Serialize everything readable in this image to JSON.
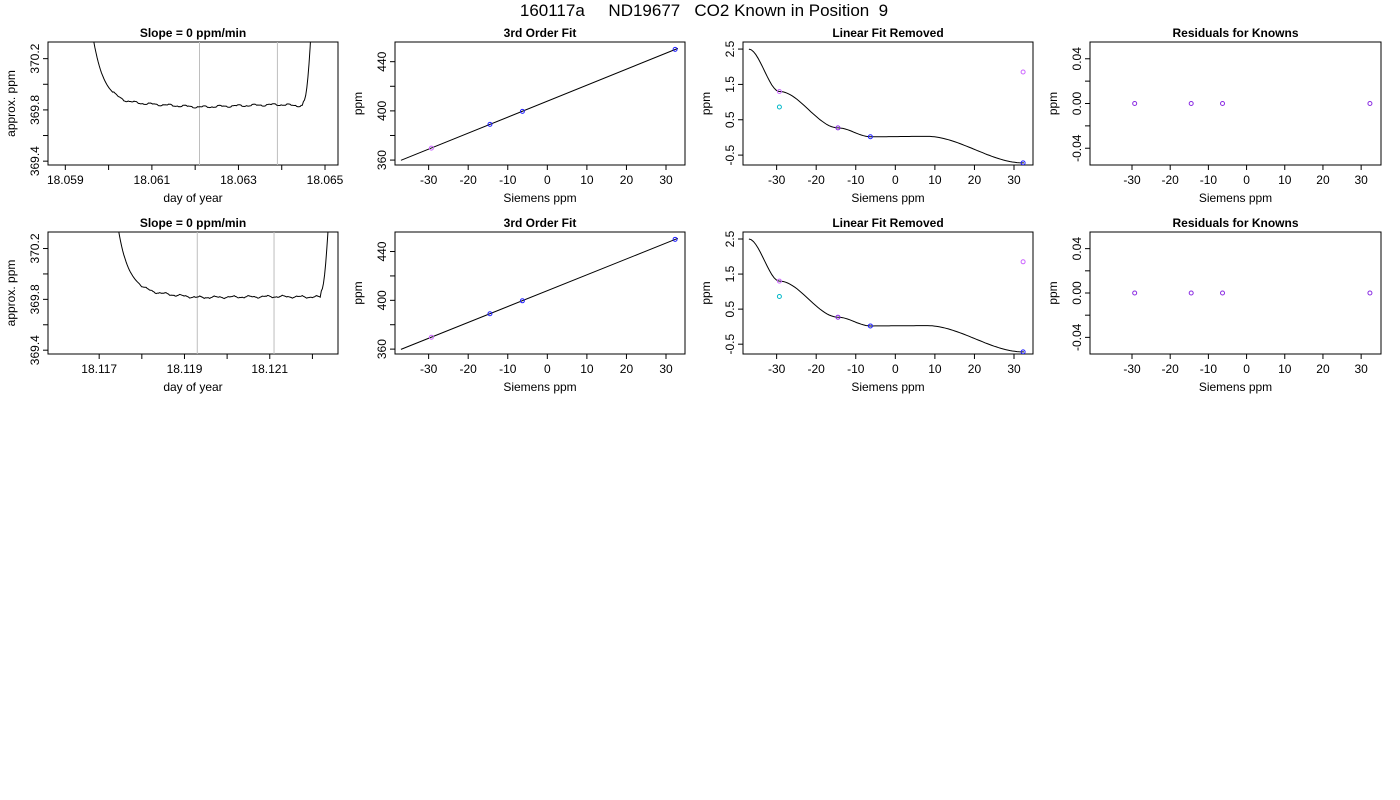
{
  "title": "160117a     ND19677   CO2 Known in Position  9",
  "colors": {
    "axis": "#000000",
    "trace": "#000000",
    "vline": "#bebebe",
    "fit_line": "#000000",
    "blue": "#1f1fff",
    "purple": "#8a2be2",
    "violet": "#cc66ff",
    "cyan": "#00b8c8",
    "red": "#ff0000",
    "orange": "#ff8c00"
  },
  "chart_data": [
    {
      "id": "r1-trace",
      "type": "line",
      "title": "Slope =  0  ppm/min",
      "xlabel": "day of year",
      "ylabel": "approx. ppm",
      "xlim": [
        18.0586,
        18.0653
      ],
      "ylim": [
        369.37,
        370.33
      ],
      "xticks": [
        18.059,
        18.06,
        18.061,
        18.062,
        18.063,
        18.064,
        18.065
      ],
      "xticklabels": [
        "18.059",
        "",
        "18.061",
        "",
        "18.063",
        "",
        "18.065"
      ],
      "yticks": [
        369.4,
        369.6,
        369.8,
        370.0,
        370.2
      ],
      "yticklabels": [
        "369.4",
        "",
        "369.8",
        "",
        "370.2"
      ],
      "vlines": [
        18.0621,
        18.0639
      ],
      "base": 369.855,
      "plateau_start": 18.0601,
      "plateau_end": 18.0645,
      "rise_start": 18.0603,
      "drop_end": 18.0598,
      "segments": [
        [
          18.0601,
          18.0621,
          369.862,
          369.822
        ],
        [
          18.0621,
          18.0639,
          369.822,
          369.842
        ],
        [
          18.0639,
          18.0645,
          369.842,
          369.832
        ]
      ],
      "grid": false
    },
    {
      "id": "r1-fit",
      "type": "scatter",
      "title": "3rd Order Fit",
      "xlabel": "Siemens ppm",
      "ylabel": "ppm",
      "xlim": [
        -38.5,
        34.8
      ],
      "ylim": [
        356,
        456
      ],
      "xticks": [
        -30,
        -20,
        -10,
        0,
        10,
        20,
        30
      ],
      "xticklabels": [
        "-30",
        "-20",
        "-10",
        "0",
        "10",
        "20",
        "30"
      ],
      "yticks": [
        360,
        380,
        400,
        420,
        440
      ],
      "yticklabels": [
        "360",
        "",
        "400",
        "",
        "440"
      ],
      "line": {
        "x0": -37,
        "x1": 33,
        "slope": 1.3,
        "intercept": 407.9
      },
      "points": [
        {
          "x": -29.3,
          "y": 369.7,
          "color": "#cc66ff"
        },
        {
          "x": -14.5,
          "y": 389.0,
          "color": "#1f1fff"
        },
        {
          "x": -6.3,
          "y": 399.6,
          "color": "#1f1fff"
        },
        {
          "x": 32.3,
          "y": 450.0,
          "color": "#1f1fff"
        }
      ],
      "grid": false
    },
    {
      "id": "r1-linear",
      "type": "scatter",
      "title": "Linear Fit Removed",
      "xlabel": "Siemens ppm",
      "ylabel": "ppm",
      "xlim": [
        -38.5,
        34.8
      ],
      "ylim": [
        -0.78,
        2.7
      ],
      "xticks": [
        -30,
        -20,
        -10,
        0,
        10,
        20,
        30
      ],
      "xticklabels": [
        "-30",
        "-20",
        "-10",
        "0",
        "10",
        "20",
        "30"
      ],
      "yticks": [
        -0.5,
        0.5,
        1.5,
        2.5
      ],
      "yticklabels": [
        "-0.5",
        "0.5",
        "1.5",
        "2.5"
      ],
      "curve": {
        "x0": -37,
        "x1": 32.5,
        "anchors": [
          [
            -37,
            2.5
          ],
          [
            -29.3,
            1.3
          ],
          [
            -14.5,
            0.27
          ],
          [
            -6.3,
            0.02
          ],
          [
            8,
            0.03
          ],
          [
            32.3,
            -0.72
          ]
        ]
      },
      "points": [
        {
          "x": -29.3,
          "y": 1.3,
          "color": "#cc66ff"
        },
        {
          "x": -29.3,
          "y": 0.86,
          "color": "#00b8c8"
        },
        {
          "x": -14.5,
          "y": 0.27,
          "color": "#8a2be2"
        },
        {
          "x": -6.3,
          "y": 0.02,
          "color": "#1f1fff"
        },
        {
          "x": 32.3,
          "y": 1.85,
          "color": "#cc66ff"
        },
        {
          "x": 32.3,
          "y": -0.72,
          "color": "#1f1fff"
        }
      ],
      "grid": false
    },
    {
      "id": "r1-resid",
      "type": "scatter",
      "title": "Residuals for Knowns",
      "xlabel": "Siemens ppm",
      "ylabel": "ppm",
      "xlim": [
        -41,
        35.2
      ],
      "ylim": [
        -0.055,
        0.055
      ],
      "xticks": [
        -30,
        -20,
        -10,
        0,
        10,
        20,
        30
      ],
      "xticklabels": [
        "-30",
        "-20",
        "-10",
        "0",
        "10",
        "20",
        "30"
      ],
      "yticks": [
        -0.04,
        -0.02,
        0.0,
        0.02,
        0.04
      ],
      "yticklabels": [
        "-0.04",
        "",
        "0.00",
        "",
        "0.04"
      ],
      "points": [
        {
          "x": -29.3,
          "y": 0.0,
          "color": "#8a2be2"
        },
        {
          "x": -14.5,
          "y": 0.0,
          "color": "#8a2be2"
        },
        {
          "x": -6.3,
          "y": 0.0,
          "color": "#8a2be2"
        },
        {
          "x": 32.3,
          "y": 0.0,
          "color": "#8a2be2"
        }
      ],
      "grid": false
    },
    {
      "id": "r2-trace",
      "type": "line",
      "title": "Slope =  0  ppm/min",
      "xlabel": "day of year",
      "ylabel": "approx. ppm",
      "xlim": [
        18.1158,
        18.1226
      ],
      "ylim": [
        369.37,
        370.33
      ],
      "xticks": [
        18.117,
        18.118,
        18.119,
        18.12,
        18.121,
        18.122
      ],
      "xticklabels": [
        "18.117",
        "",
        "18.119",
        "",
        "18.121",
        ""
      ],
      "yticks": [
        369.4,
        369.6,
        369.8,
        370.0,
        370.2
      ],
      "yticklabels": [
        "369.4",
        "",
        "369.8",
        "",
        "370.2"
      ],
      "vlines": [
        18.1193,
        18.1211
      ],
      "base": 369.855,
      "plateau_start": 18.1179,
      "plateau_end": 18.1222,
      "rise_start": 18.1181,
      "drop_end": 18.1176,
      "segments": [
        [
          18.1179,
          18.1193,
          369.862,
          369.815
        ],
        [
          18.1193,
          18.1211,
          369.815,
          369.822
        ],
        [
          18.1211,
          18.1222,
          369.822,
          369.818
        ]
      ],
      "grid": false
    },
    {
      "id": "r2-fit",
      "type": "scatter",
      "title": "3rd Order Fit",
      "xlabel": "Siemens ppm",
      "ylabel": "ppm",
      "xlim": [
        -38.5,
        34.8
      ],
      "ylim": [
        356,
        456
      ],
      "xticks": [
        -30,
        -20,
        -10,
        0,
        10,
        20,
        30
      ],
      "xticklabels": [
        "-30",
        "-20",
        "-10",
        "0",
        "10",
        "20",
        "30"
      ],
      "yticks": [
        360,
        380,
        400,
        420,
        440
      ],
      "yticklabels": [
        "360",
        "",
        "400",
        "",
        "440"
      ],
      "line": {
        "x0": -37,
        "x1": 33,
        "slope": 1.3,
        "intercept": 407.9
      },
      "points": [
        {
          "x": -29.3,
          "y": 369.7,
          "color": "#cc66ff"
        },
        {
          "x": -14.5,
          "y": 389.0,
          "color": "#1f1fff"
        },
        {
          "x": -6.3,
          "y": 399.6,
          "color": "#1f1fff"
        },
        {
          "x": 32.3,
          "y": 450.0,
          "color": "#1f1fff"
        }
      ],
      "grid": false
    },
    {
      "id": "r2-linear",
      "type": "scatter",
      "title": "Linear Fit Removed",
      "xlabel": "Siemens ppm",
      "ylabel": "ppm",
      "xlim": [
        -38.5,
        34.8
      ],
      "ylim": [
        -0.78,
        2.7
      ],
      "xticks": [
        -30,
        -20,
        -10,
        0,
        10,
        20,
        30
      ],
      "xticklabels": [
        "-30",
        "-20",
        "-10",
        "0",
        "10",
        "20",
        "30"
      ],
      "yticks": [
        -0.5,
        0.5,
        1.5,
        2.5
      ],
      "yticklabels": [
        "-0.5",
        "0.5",
        "1.5",
        "2.5"
      ],
      "curve": {
        "x0": -37,
        "x1": 32.5,
        "anchors": [
          [
            -37,
            2.5
          ],
          [
            -29.3,
            1.3
          ],
          [
            -14.5,
            0.27
          ],
          [
            -6.3,
            0.02
          ],
          [
            8,
            0.03
          ],
          [
            32.3,
            -0.72
          ]
        ]
      },
      "points": [
        {
          "x": -29.3,
          "y": 1.3,
          "color": "#cc66ff"
        },
        {
          "x": -29.3,
          "y": 0.86,
          "color": "#00b8c8"
        },
        {
          "x": -14.5,
          "y": 0.27,
          "color": "#8a2be2"
        },
        {
          "x": -6.3,
          "y": 0.02,
          "color": "#1f1fff"
        },
        {
          "x": 32.3,
          "y": 1.85,
          "color": "#cc66ff"
        },
        {
          "x": 32.3,
          "y": -0.72,
          "color": "#1f1fff"
        }
      ],
      "grid": false
    },
    {
      "id": "r2-resid",
      "type": "scatter",
      "title": "Residuals for Knowns",
      "xlabel": "Siemens ppm",
      "ylabel": "ppm",
      "xlim": [
        -41,
        35.2
      ],
      "ylim": [
        -0.055,
        0.055
      ],
      "xticks": [
        -30,
        -20,
        -10,
        0,
        10,
        20,
        30
      ],
      "xticklabels": [
        "-30",
        "-20",
        "-10",
        "0",
        "10",
        "20",
        "30"
      ],
      "yticks": [
        -0.04,
        -0.02,
        0.0,
        0.02,
        0.04
      ],
      "yticklabels": [
        "-0.04",
        "",
        "0.00",
        "",
        "0.04"
      ],
      "points": [
        {
          "x": -29.3,
          "y": 0.0,
          "color": "#8a2be2"
        },
        {
          "x": -14.5,
          "y": 0.0,
          "color": "#8a2be2"
        },
        {
          "x": -6.3,
          "y": 0.0,
          "color": "#8a2be2"
        },
        {
          "x": 32.3,
          "y": 0.0,
          "color": "#8a2be2"
        }
      ],
      "grid": false
    }
  ]
}
